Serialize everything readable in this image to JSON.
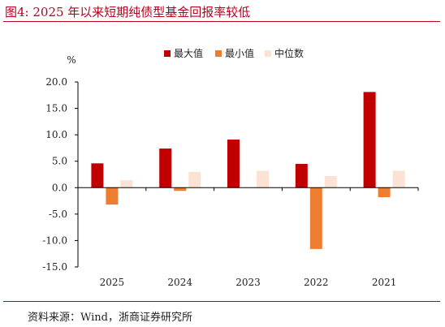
{
  "title": "图4:   2025 年以来短期纯债型基金回报率较低",
  "source": "资料来源：Wind，浙商证券研究所",
  "colors": {
    "title": "#b8001e",
    "max": "#c00000",
    "min": "#ed7d31",
    "median": "#fbe2d5",
    "axis": "#000000"
  },
  "chart_data": {
    "type": "bar",
    "categories": [
      "2025",
      "2024",
      "2023",
      "2022",
      "2021"
    ],
    "ylabel": "%",
    "ylim": [
      -15,
      20
    ],
    "yticks": [
      "20.0",
      "15.0",
      "10.0",
      "5.0",
      "0.0",
      "-5.0",
      "-10.0",
      "-15.0"
    ],
    "grid": false,
    "legend_position": "top",
    "series": [
      {
        "name": "最大值",
        "values": [
          4.6,
          7.4,
          9.1,
          4.5,
          18.1
        ]
      },
      {
        "name": "最小值",
        "values": [
          -3.2,
          -0.6,
          0.0,
          -11.6,
          -1.8
        ]
      },
      {
        "name": "中位数",
        "values": [
          1.4,
          3.0,
          3.2,
          2.2,
          3.2
        ]
      }
    ]
  }
}
